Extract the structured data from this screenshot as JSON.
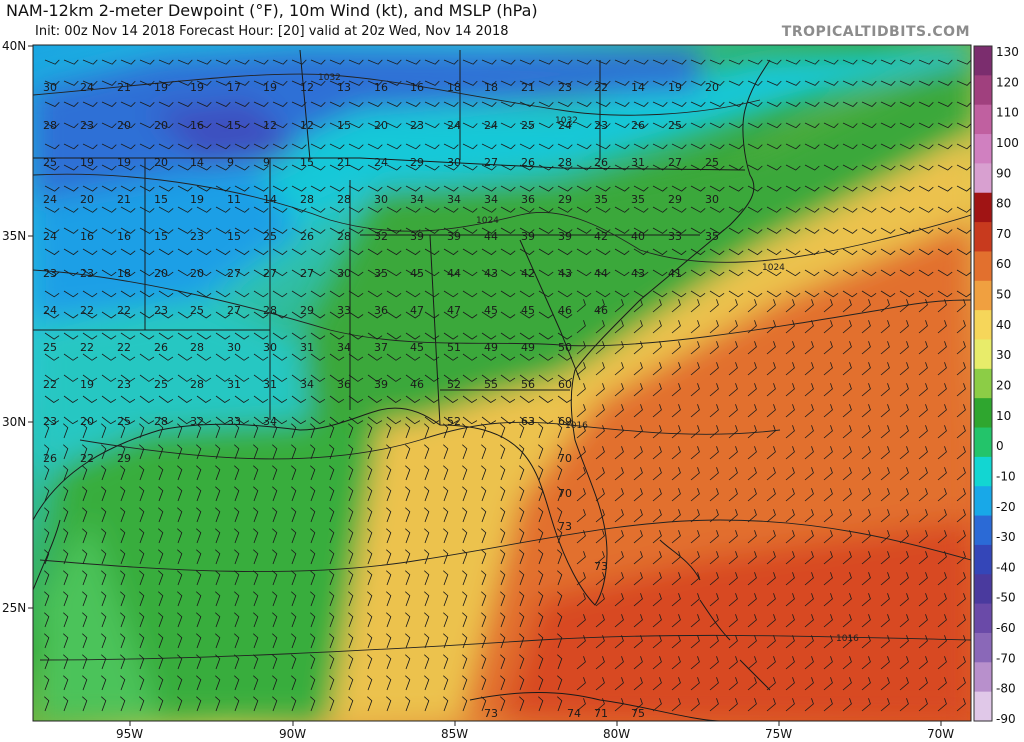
{
  "header": {
    "title": "NAM-12km 2-meter Dewpoint (°F), 10m Wind (kt), and MSLP (hPa)",
    "subtitle": "Init: 00z Nov 14 2018   Forecast Hour: [20]   valid at 20z Wed, Nov 14 2018",
    "brand": "TROPICALTIDBITS.COM"
  },
  "axes": {
    "lat_labels": [
      "40N",
      "35N",
      "30N",
      "25N"
    ],
    "lon_labels": [
      "95W",
      "90W",
      "85W",
      "80W",
      "75W",
      "70W"
    ]
  },
  "colorbar": {
    "ticks": [
      "130",
      "120",
      "110",
      "100",
      "90",
      "80",
      "70",
      "60",
      "50",
      "40",
      "30",
      "20",
      "10",
      "0",
      "-10",
      "-20",
      "-30",
      "-40",
      "-50",
      "-60",
      "-70",
      "-80",
      "-90"
    ],
    "colors": [
      "#7b2d6e",
      "#a0407e",
      "#c060a0",
      "#d080c0",
      "#d8a0d0",
      "#a01414",
      "#c83a1e",
      "#e2702e",
      "#f0a040",
      "#f6d65a",
      "#e8ec6a",
      "#8ccd46",
      "#2fa62f",
      "#23c46a",
      "#12d6d2",
      "#18a8e8",
      "#2b6ad6",
      "#3446b8",
      "#4a3a9e",
      "#6a4aa8",
      "#8a68b8",
      "#b890cc",
      "#e0c8e8"
    ]
  },
  "isobar_labels": [
    "1032",
    "1032",
    "1024",
    "1024",
    "1016",
    "1016"
  ],
  "station_values": [
    "30",
    "24",
    "21",
    "19",
    "19",
    "17",
    "19",
    "12",
    "13",
    "16",
    "16",
    "18",
    "18",
    "21",
    "23",
    "22",
    "14",
    "19",
    "20",
    "28",
    "23",
    "20",
    "20",
    "16",
    "15",
    "12",
    "12",
    "15",
    "20",
    "23",
    "24",
    "24",
    "25",
    "24",
    "23",
    "26",
    "25",
    "25",
    "19",
    "19",
    "20",
    "14",
    "9",
    "9",
    "15",
    "21",
    "24",
    "29",
    "30",
    "27",
    "26",
    "28",
    "26",
    "31",
    "27",
    "25",
    "24",
    "20",
    "21",
    "15",
    "19",
    "11",
    "14",
    "28",
    "28",
    "30",
    "34",
    "34",
    "34",
    "36",
    "29",
    "35",
    "35",
    "29",
    "30",
    "24",
    "16",
    "16",
    "15",
    "23",
    "15",
    "25",
    "26",
    "28",
    "32",
    "39",
    "39",
    "44",
    "39",
    "39",
    "42",
    "40",
    "33",
    "35",
    "23",
    "23",
    "18",
    "20",
    "20",
    "27",
    "27",
    "27",
    "30",
    "35",
    "45",
    "44",
    "43",
    "42",
    "43",
    "44",
    "43",
    "41",
    "24",
    "22",
    "22",
    "23",
    "25",
    "27",
    "28",
    "29",
    "33",
    "36",
    "47",
    "47",
    "45",
    "45",
    "46",
    "46",
    "25",
    "22",
    "22",
    "26",
    "28",
    "30",
    "30",
    "31",
    "34",
    "37",
    "45",
    "51",
    "49",
    "49",
    "50",
    "22",
    "19",
    "23",
    "25",
    "28",
    "31",
    "31",
    "34",
    "36",
    "39",
    "46",
    "52",
    "55",
    "56",
    "60",
    "23",
    "20",
    "25",
    "28",
    "32",
    "33",
    "34",
    "52",
    "63",
    "69",
    "26",
    "22",
    "29",
    "70",
    "70",
    "73",
    "73",
    "71",
    "73",
    "74",
    "75"
  ]
}
